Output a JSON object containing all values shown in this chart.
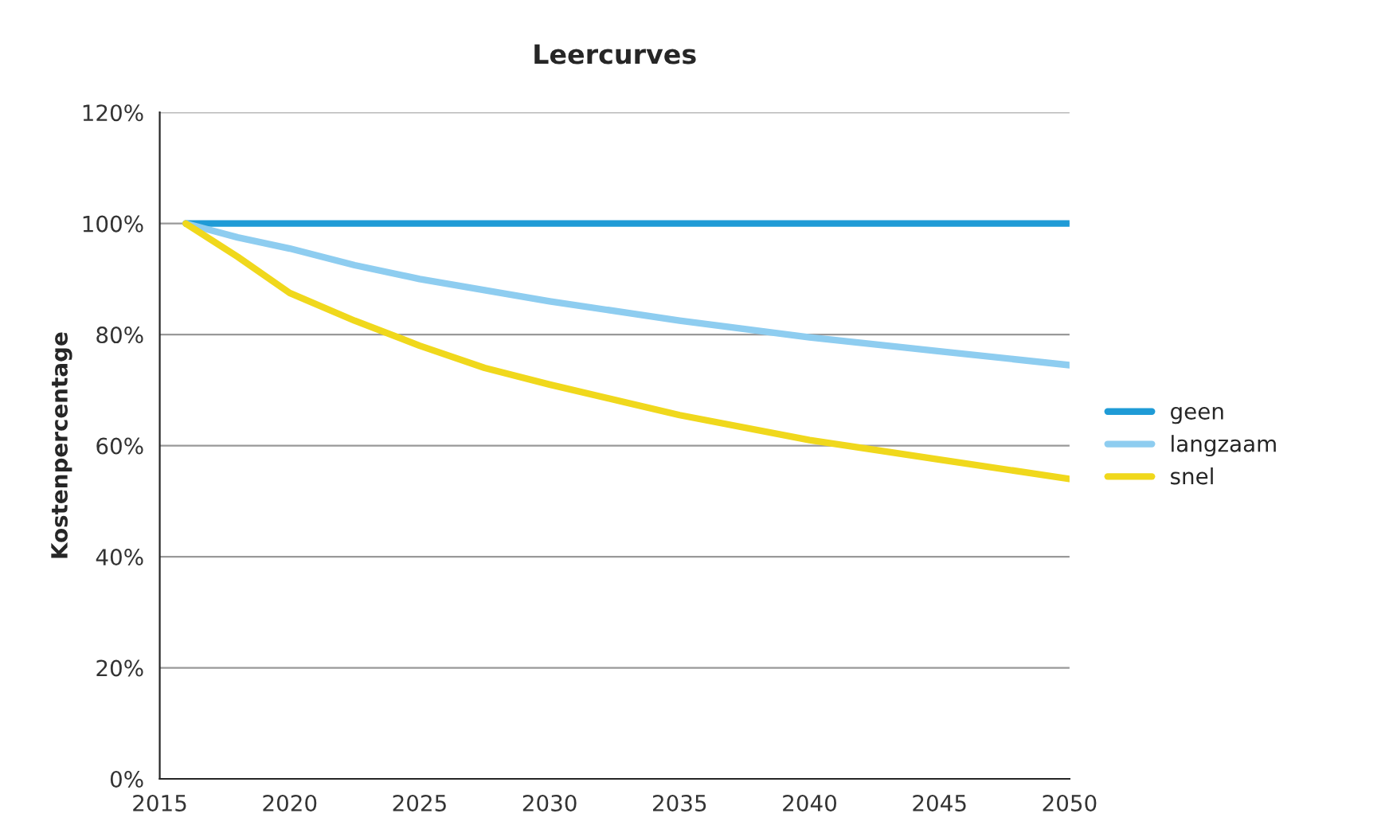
{
  "chart_data": {
    "type": "line",
    "title": "Leercurves",
    "ylabel": "Kostenpercentage",
    "x": [
      2016,
      2018,
      2020,
      2022.5,
      2025,
      2027.5,
      2030,
      2035,
      2040,
      2045,
      2050
    ],
    "series": [
      {
        "name": "geen",
        "color": "#1f9bd6",
        "values": [
          100,
          100,
          100,
          100,
          100,
          100,
          100,
          100,
          100,
          100,
          100
        ]
      },
      {
        "name": "langzaam",
        "color": "#8ecdf0",
        "values": [
          100,
          97.5,
          95.5,
          92.5,
          90,
          88,
          86,
          82.5,
          79.5,
          77,
          74.5
        ]
      },
      {
        "name": "snel",
        "color": "#f0d81c",
        "values": [
          100,
          94,
          87.5,
          82.5,
          78,
          74,
          71,
          65.5,
          61,
          57.5,
          54
        ]
      }
    ],
    "xlim": [
      2015,
      2050
    ],
    "xticks": [
      2015,
      2020,
      2025,
      2030,
      2035,
      2040,
      2045,
      2050
    ],
    "ylim": [
      0,
      120
    ],
    "yticks": [
      {
        "value": 0,
        "label": "0%"
      },
      {
        "value": 20,
        "label": "20%"
      },
      {
        "value": 40,
        "label": "40%"
      },
      {
        "value": 60,
        "label": "60%"
      },
      {
        "value": 80,
        "label": "80%"
      },
      {
        "value": 100,
        "label": "100%"
      },
      {
        "value": 120,
        "label": "120%"
      }
    ],
    "grid": "y",
    "legend": "right",
    "marker": "none",
    "line_style": "solid"
  }
}
